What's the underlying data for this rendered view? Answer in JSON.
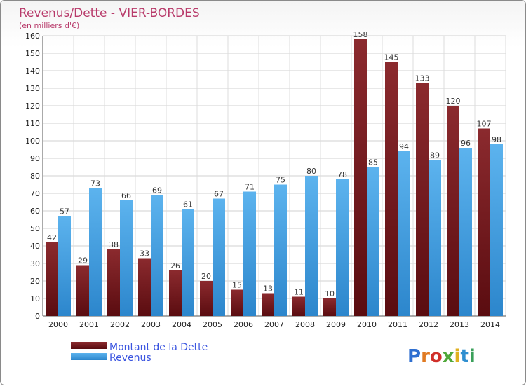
{
  "chart_data": {
    "type": "bar",
    "title": "Revenus/Dette - VIER-BORDES",
    "subtitle": "(en milliers d'€)",
    "categories": [
      "2000",
      "2001",
      "2002",
      "2003",
      "2004",
      "2005",
      "2006",
      "2007",
      "2008",
      "2009",
      "2010",
      "2011",
      "2012",
      "2013",
      "2014"
    ],
    "series": [
      {
        "name": "Montant de la Dette",
        "color": "#7a1e22",
        "values": [
          42,
          29,
          38,
          33,
          26,
          20,
          15,
          13,
          11,
          10,
          158,
          145,
          133,
          120,
          107
        ]
      },
      {
        "name": "Revenus",
        "color": "#3f9ee0",
        "values": [
          57,
          73,
          66,
          69,
          61,
          67,
          71,
          75,
          80,
          78,
          85,
          94,
          89,
          96,
          98
        ]
      }
    ],
    "ylim": [
      0,
      160
    ],
    "yticks": [
      0,
      10,
      20,
      30,
      40,
      50,
      60,
      70,
      80,
      90,
      100,
      110,
      120,
      130,
      140,
      150,
      160
    ],
    "xlabel": "",
    "ylabel": "",
    "grid": true,
    "legend_position": "bottom-left"
  },
  "logo": {
    "text": "Proxiti",
    "colors": [
      "#2f6fd0",
      "#e07a22",
      "#d0302a",
      "#4fa83a",
      "#e0b020",
      "#2f8fd0",
      "#3aa05a"
    ]
  }
}
